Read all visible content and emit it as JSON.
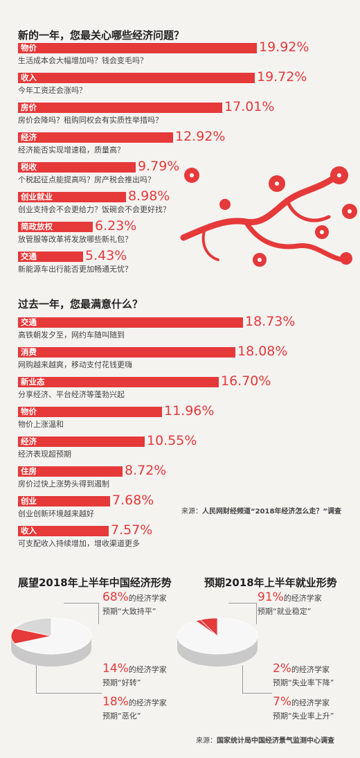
{
  "colors": {
    "accent": "#e5393a",
    "background": "#f4f3f0",
    "pie_gray": "#d8d8d8",
    "pie_light": "#f7f7f7"
  },
  "section1": {
    "title": "新的一年，您最关心哪些经济问题？",
    "items": [
      {
        "label": "物价",
        "value": "19.92%",
        "desc": "生活成本会大幅增加吗？钱会变毛吗？"
      },
      {
        "label": "收入",
        "value": "19.72%",
        "desc": "今年工资还会涨吗？"
      },
      {
        "label": "房价",
        "value": "17.01%",
        "desc": "房价会降吗？租购同权会有实质性举措吗？"
      },
      {
        "label": "经济",
        "value": "12.92%",
        "desc": "经济能否实现增速稳，质量高？"
      },
      {
        "label": "税收",
        "value": "9.79%",
        "desc": "个税起征点能提高吗？房产税会推出吗？"
      },
      {
        "label": "创业就业",
        "value": "8.98%",
        "desc": "创业支持会不会更给力？饭碗会不会更好找？"
      },
      {
        "label": "简政放权",
        "value": "6.23%",
        "desc": "放管服等改革将发放哪些新礼包？"
      },
      {
        "label": "交通",
        "value": "5.43%",
        "desc": "新能源车出行能否更加畅通无忧？"
      }
    ]
  },
  "section2": {
    "title": "过去一年，您最满意什么？",
    "items": [
      {
        "label": "交通",
        "value": "18.73%",
        "desc": "高铁朝发夕至，网约车随叫随到"
      },
      {
        "label": "消费",
        "value": "18.08%",
        "desc": "网购越来越爽，移动支付花钱更嗨"
      },
      {
        "label": "新业态",
        "value": "16.70%",
        "desc": "分享经济、平台经济等蓬勃兴起"
      },
      {
        "label": "物价",
        "value": "11.96%",
        "desc": "物价上涨温和"
      },
      {
        "label": "经济",
        "value": "10.55%",
        "desc": "经济表现超预期"
      },
      {
        "label": "住房",
        "value": "8.72%",
        "desc": "房价过快上涨势头得到遏制"
      },
      {
        "label": "创业",
        "value": "7.68%",
        "desc": "创业创新环境越来越好"
      },
      {
        "label": "收入",
        "value": "7.57%",
        "desc": "可支配收入持续增加，增收渠道更多"
      }
    ],
    "source": {
      "prefix": "来源：",
      "text": "人民网财经频道“2018年经济怎么走？”调查"
    }
  },
  "pie1": {
    "title": "展望2018年上半年中国经济形势",
    "slices": [
      {
        "pct": "68%",
        "who": "的经济学家",
        "what": "预期“大致持平”"
      },
      {
        "pct": "14%",
        "who": "的经济学家",
        "what": "预期“好转”"
      },
      {
        "pct": "18%",
        "who": "的经济学家",
        "what": "预期“恶化”"
      }
    ]
  },
  "pie2": {
    "title": "预期2018年上半年就业形势",
    "slices": [
      {
        "pct": "91%",
        "who": "的经济学家",
        "what": "预期“就业稳定”"
      },
      {
        "pct": "2%",
        "who": "的经济学家",
        "what": "预期“失业率下降”"
      },
      {
        "pct": "7%",
        "who": "的经济学家",
        "what": "预期“失业率上升”"
      }
    ]
  },
  "source2": {
    "prefix": "来源：",
    "text": "国家统计局中国经济景气监测中心调查"
  },
  "chart_data": [
    {
      "type": "bar",
      "title": "新的一年，您最关心哪些经济问题？",
      "categories": [
        "物价",
        "收入",
        "房价",
        "经济",
        "税收",
        "创业就业",
        "简政放权",
        "交通"
      ],
      "values": [
        19.92,
        19.72,
        17.01,
        12.92,
        9.79,
        8.98,
        6.23,
        5.43
      ],
      "unit": "%"
    },
    {
      "type": "bar",
      "title": "过去一年，您最满意什么？",
      "categories": [
        "交通",
        "消费",
        "新业态",
        "物价",
        "经济",
        "住房",
        "创业",
        "收入"
      ],
      "values": [
        18.73,
        18.08,
        16.7,
        11.96,
        10.55,
        8.72,
        7.68,
        7.57
      ],
      "unit": "%"
    },
    {
      "type": "pie",
      "title": "展望2018年上半年中国经济形势",
      "categories": [
        "大致持平",
        "好转",
        "恶化"
      ],
      "values": [
        68,
        14,
        18
      ],
      "unit": "%"
    },
    {
      "type": "pie",
      "title": "预期2018年上半年就业形势",
      "categories": [
        "就业稳定",
        "失业率下降",
        "失业率上升"
      ],
      "values": [
        91,
        2,
        7
      ],
      "unit": "%"
    }
  ]
}
